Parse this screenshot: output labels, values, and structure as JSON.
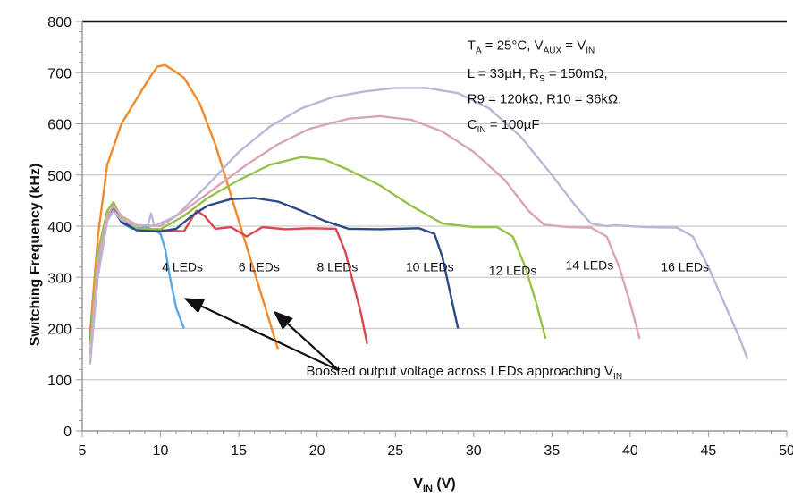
{
  "chart_data": {
    "type": "line",
    "xlabel": {
      "main": "V",
      "sub": "IN",
      "tail": " (V)"
    },
    "ylabel": "Switching Frequency (kHz)",
    "xlim": [
      5,
      50
    ],
    "ylim": [
      0,
      800
    ],
    "x_ticks": [
      "5",
      "10",
      "15",
      "20",
      "25",
      "30",
      "35",
      "40",
      "45",
      "50"
    ],
    "y_ticks": [
      "0",
      "100",
      "200",
      "300",
      "400",
      "500",
      "600",
      "700",
      "800"
    ],
    "grid": true,
    "conditions": [
      [
        {
          "t": "T"
        },
        {
          "t": "A",
          "sub": true
        },
        {
          "t": " = 25°C,    V"
        },
        {
          "t": "AUX",
          "sub": true
        },
        {
          "t": " = V"
        },
        {
          "t": "IN",
          "sub": true
        }
      ],
      [
        {
          "t": "L = 33µH,       R"
        },
        {
          "t": "S",
          "sub": true
        },
        {
          "t": " = 150mΩ,"
        }
      ],
      [
        {
          "t": "R9 = 120kΩ, R10 = 36kΩ,"
        }
      ],
      [
        {
          "t": "C"
        },
        {
          "t": "IN",
          "sub": true
        },
        {
          "t": " = 100µF"
        }
      ]
    ],
    "annotation": [
      {
        "t": "Boosted output voltage across LEDs approaching V"
      },
      {
        "t": "IN",
        "sub": true
      }
    ],
    "series": [
      {
        "name": "4 LEDs",
        "color": "#5aa6e8",
        "label_at": [
          11.4,
          312
        ],
        "points": [
          [
            5.5,
            180
          ],
          [
            6.0,
            320
          ],
          [
            6.5,
            410
          ],
          [
            6.9,
            435
          ],
          [
            7.2,
            425
          ],
          [
            7.6,
            405
          ],
          [
            8.2,
            395
          ],
          [
            9.0,
            400
          ],
          [
            9.6,
            392
          ],
          [
            10.0,
            385
          ],
          [
            10.3,
            355
          ],
          [
            10.6,
            300
          ],
          [
            11.0,
            240
          ],
          [
            11.5,
            200
          ]
        ]
      },
      {
        "name": "6 LEDs",
        "color": "#f08a2a",
        "label_at": [
          16.3,
          312
        ],
        "points": [
          [
            5.5,
            190
          ],
          [
            6.0,
            380
          ],
          [
            6.6,
            520
          ],
          [
            7.5,
            600
          ],
          [
            8.5,
            650
          ],
          [
            9.3,
            690
          ],
          [
            9.8,
            712
          ],
          [
            10.3,
            715
          ],
          [
            10.8,
            705
          ],
          [
            11.5,
            690
          ],
          [
            12.5,
            640
          ],
          [
            13.5,
            560
          ],
          [
            14.5,
            460
          ],
          [
            15.5,
            360
          ],
          [
            16.5,
            260
          ],
          [
            17.5,
            160
          ]
        ]
      },
      {
        "name": "8 LEDs",
        "color": "#d8474e",
        "label_at": [
          21.3,
          312
        ],
        "points": [
          [
            5.5,
            170
          ],
          [
            6.0,
            330
          ],
          [
            6.6,
            420
          ],
          [
            7.0,
            440
          ],
          [
            7.5,
            410
          ],
          [
            8.5,
            395
          ],
          [
            10.0,
            392
          ],
          [
            11.5,
            390
          ],
          [
            12.3,
            430
          ],
          [
            12.8,
            420
          ],
          [
            13.5,
            395
          ],
          [
            14.5,
            398
          ],
          [
            15.5,
            380
          ],
          [
            16.5,
            398
          ],
          [
            18.0,
            394
          ],
          [
            19.5,
            396
          ],
          [
            21.2,
            395
          ],
          [
            21.8,
            350
          ],
          [
            22.3,
            290
          ],
          [
            22.8,
            230
          ],
          [
            23.2,
            170
          ]
        ]
      },
      {
        "name": "10 LEDs",
        "color": "#2b4a86",
        "label_at": [
          27.2,
          312
        ],
        "points": [
          [
            5.5,
            175
          ],
          [
            6.0,
            340
          ],
          [
            6.6,
            425
          ],
          [
            7.0,
            432
          ],
          [
            7.5,
            408
          ],
          [
            8.5,
            392
          ],
          [
            10.0,
            390
          ],
          [
            11.0,
            395
          ],
          [
            12.0,
            420
          ],
          [
            13.0,
            440
          ],
          [
            14.5,
            453
          ],
          [
            16.0,
            455
          ],
          [
            17.5,
            448
          ],
          [
            19.0,
            430
          ],
          [
            20.5,
            410
          ],
          [
            22.0,
            395
          ],
          [
            24.0,
            394
          ],
          [
            26.5,
            396
          ],
          [
            27.5,
            385
          ],
          [
            28.0,
            340
          ],
          [
            28.5,
            270
          ],
          [
            29.0,
            200
          ]
        ]
      },
      {
        "name": "12 LEDs",
        "color": "#97c24a",
        "label_at": [
          32.5,
          305
        ],
        "points": [
          [
            5.5,
            170
          ],
          [
            6.0,
            350
          ],
          [
            6.6,
            430
          ],
          [
            7.0,
            447
          ],
          [
            7.5,
            415
          ],
          [
            8.5,
            396
          ],
          [
            10.0,
            394
          ],
          [
            11.5,
            420
          ],
          [
            13.0,
            455
          ],
          [
            15.0,
            490
          ],
          [
            17.0,
            520
          ],
          [
            19.0,
            535
          ],
          [
            20.5,
            530
          ],
          [
            22.0,
            510
          ],
          [
            24.0,
            480
          ],
          [
            26.0,
            440
          ],
          [
            28.0,
            405
          ],
          [
            30.0,
            398
          ],
          [
            31.5,
            398
          ],
          [
            32.5,
            380
          ],
          [
            33.3,
            320
          ],
          [
            34.0,
            250
          ],
          [
            34.6,
            180
          ]
        ]
      },
      {
        "name": "14 LEDs",
        "color": "#d9a5b2",
        "label_at": [
          37.4,
          315
        ],
        "points": [
          [
            5.5,
            150
          ],
          [
            6.0,
            330
          ],
          [
            6.6,
            420
          ],
          [
            7.0,
            440
          ],
          [
            7.5,
            420
          ],
          [
            8.5,
            402
          ],
          [
            10.0,
            400
          ],
          [
            11.5,
            430
          ],
          [
            13.5,
            475
          ],
          [
            15.5,
            520
          ],
          [
            17.5,
            560
          ],
          [
            19.5,
            590
          ],
          [
            22.0,
            610
          ],
          [
            24.0,
            615
          ],
          [
            26.0,
            608
          ],
          [
            28.0,
            585
          ],
          [
            30.0,
            545
          ],
          [
            32.0,
            490
          ],
          [
            33.5,
            430
          ],
          [
            34.5,
            403
          ],
          [
            36.0,
            398
          ],
          [
            37.5,
            397
          ],
          [
            38.5,
            380
          ],
          [
            39.3,
            320
          ],
          [
            40.0,
            250
          ],
          [
            40.6,
            180
          ]
        ]
      },
      {
        "name": "16 LEDs",
        "color": "#bdb5d6",
        "label_at": [
          43.5,
          312
        ],
        "points": [
          [
            5.5,
            130
          ],
          [
            6.0,
            300
          ],
          [
            6.6,
            410
          ],
          [
            7.0,
            430
          ],
          [
            7.5,
            412
          ],
          [
            8.5,
            400
          ],
          [
            9.2,
            402
          ],
          [
            9.4,
            425
          ],
          [
            9.6,
            400
          ],
          [
            11.0,
            420
          ],
          [
            13.0,
            480
          ],
          [
            15.0,
            545
          ],
          [
            17.0,
            595
          ],
          [
            19.0,
            630
          ],
          [
            21.0,
            652
          ],
          [
            23.0,
            663
          ],
          [
            25.0,
            670
          ],
          [
            27.0,
            670
          ],
          [
            29.0,
            660
          ],
          [
            31.0,
            630
          ],
          [
            33.0,
            575
          ],
          [
            35.0,
            500
          ],
          [
            36.5,
            440
          ],
          [
            37.5,
            405
          ],
          [
            38.5,
            400
          ],
          [
            39.0,
            402
          ],
          [
            41.0,
            398
          ],
          [
            43.0,
            397
          ],
          [
            44.0,
            380
          ],
          [
            45.0,
            320
          ],
          [
            46.0,
            250
          ],
          [
            47.0,
            180
          ],
          [
            47.5,
            140
          ]
        ]
      }
    ]
  }
}
